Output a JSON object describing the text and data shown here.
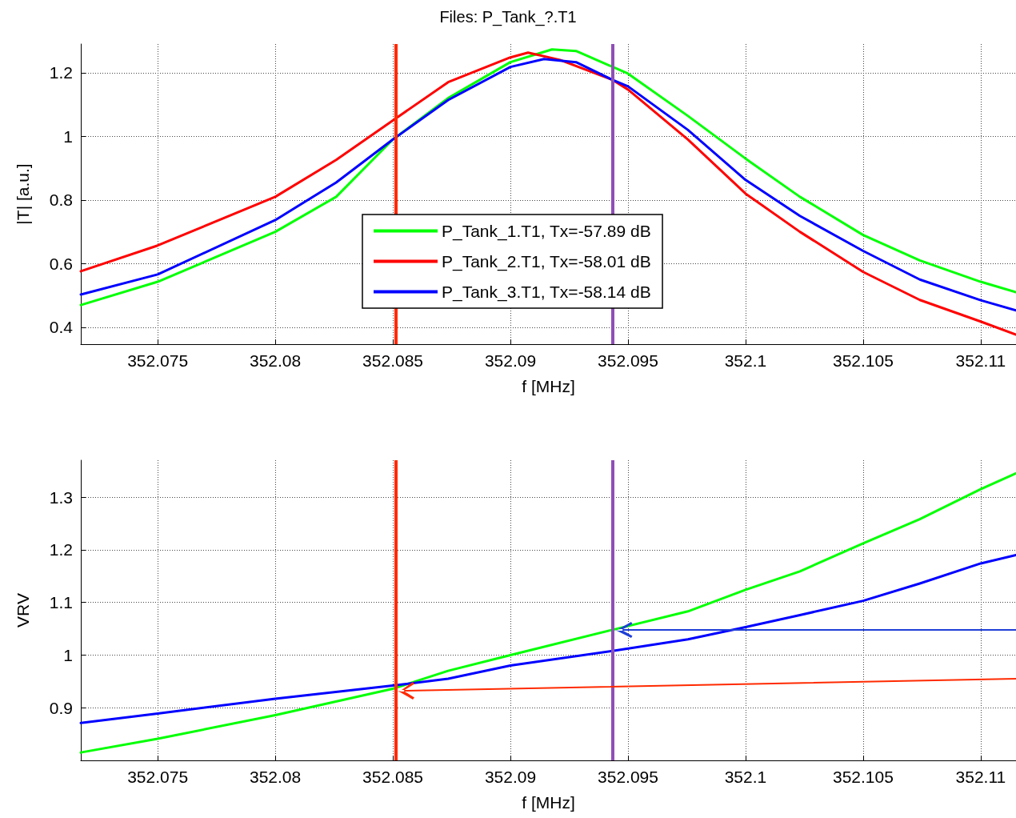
{
  "chart_data": [
    {
      "type": "line",
      "title": "Files: P_Tank_?.T1",
      "xlabel": "f [MHz]",
      "ylabel": "|T| [a.u.]",
      "x": [
        352.07173,
        352.075,
        352.08,
        352.08259,
        352.085,
        352.08735,
        352.09,
        352.09177,
        352.09279,
        352.095,
        352.09755,
        352.1,
        352.10231,
        352.105,
        352.10741,
        352.11,
        352.1115
      ],
      "series": [
        {
          "name": "P_Tank_1.T1, Tx=-57.89 dB",
          "color": "#00ff00",
          "values": [
            0.47,
            0.543,
            0.7,
            0.81,
            0.99,
            1.12,
            1.233,
            1.273,
            1.268,
            1.197,
            1.064,
            0.93,
            0.81,
            0.69,
            0.61,
            0.543,
            0.51
          ]
        },
        {
          "name": "P_Tank_2.T1, Tx=-58.01 dB",
          "color": "#ff0000",
          "x": [
            352.07173,
            352.075,
            352.08,
            352.08259,
            352.085,
            352.08735,
            352.09,
            352.09075,
            352.09211,
            352.09435,
            352.095,
            352.09755,
            352.1,
            352.10231,
            352.105,
            352.10741,
            352.11,
            352.1115
          ],
          "values": [
            0.576,
            0.657,
            0.81,
            0.926,
            1.05,
            1.17,
            1.248,
            1.263,
            1.24,
            1.177,
            1.147,
            0.99,
            0.82,
            0.7,
            0.574,
            0.486,
            0.418,
            0.377
          ]
        },
        {
          "name": "P_Tank_3.T1, Tx=-58.14 dB",
          "color": "#0000ff",
          "x": [
            352.07173,
            352.075,
            352.08,
            352.08259,
            352.085,
            352.08735,
            352.09,
            352.09143,
            352.09279,
            352.09435,
            352.095,
            352.09755,
            352.1,
            352.10231,
            352.105,
            352.10741,
            352.11,
            352.1115
          ],
          "values": [
            0.503,
            0.566,
            0.737,
            0.855,
            0.99,
            1.114,
            1.218,
            1.243,
            1.233,
            1.177,
            1.157,
            1.02,
            0.863,
            0.75,
            0.64,
            0.55,
            0.485,
            0.453
          ]
        }
      ],
      "xlim": [
        352.07173,
        352.1115
      ],
      "xticks": [
        352.075,
        352.08,
        352.085,
        352.09,
        352.095,
        352.1,
        352.105,
        352.11
      ],
      "ylim": [
        0.347,
        1.29
      ],
      "yticks": [
        0.4,
        0.6,
        0.8,
        1,
        1.2
      ],
      "ref_lines": [
        {
          "axis": "x",
          "value": 352.08514,
          "color": "#ff2a00"
        },
        {
          "axis": "x",
          "value": 352.09435,
          "color": "#8e4fb5"
        }
      ],
      "grid": true,
      "legend": "center",
      "marker": "none",
      "line_style": "solid"
    },
    {
      "type": "line",
      "xlabel": "f [MHz]",
      "ylabel": "VRV",
      "x": [
        352.07173,
        352.075,
        352.08,
        352.085,
        352.08735,
        352.09,
        352.09435,
        352.09755,
        352.1,
        352.10231,
        352.105,
        352.10741,
        352.11,
        352.1115
      ],
      "series": [
        {
          "color": "#00ff00",
          "values": [
            0.815,
            0.841,
            0.886,
            0.936,
            0.97,
            1.0,
            1.048,
            1.083,
            1.124,
            1.159,
            1.212,
            1.258,
            1.315,
            1.345
          ]
        },
        {
          "color": "#0000ff",
          "values": [
            0.871,
            0.889,
            0.917,
            0.942,
            0.955,
            0.98,
            1.008,
            1.03,
            1.053,
            1.076,
            1.103,
            1.136,
            1.174,
            1.19
          ]
        }
      ],
      "xlim": [
        352.07173,
        352.1115
      ],
      "xticks": [
        352.075,
        352.08,
        352.085,
        352.09,
        352.095,
        352.1,
        352.105,
        352.11
      ],
      "ylim": [
        0.8,
        1.37
      ],
      "yticks": [
        0.9,
        1,
        1.1,
        1.2,
        1.3
      ],
      "ref_lines": [
        {
          "axis": "x",
          "value": 352.08514,
          "color": "#ff2a00"
        },
        {
          "axis": "x",
          "value": 352.09435,
          "color": "#8e4fb5"
        }
      ],
      "grid": true,
      "marker": "none",
      "line_style": "solid"
    }
  ]
}
